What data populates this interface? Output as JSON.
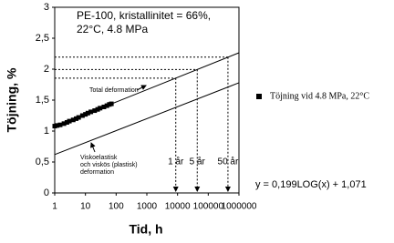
{
  "chart_data": {
    "type": "scatter",
    "xscale": "log",
    "xlabel": "Tid, h",
    "ylabel": "Töjning, %",
    "xlim": [
      1,
      1000000
    ],
    "ylim": [
      0,
      3
    ],
    "xticks": [
      1,
      10,
      100,
      1000,
      10000,
      100000,
      1000000
    ],
    "yticks": [
      0,
      {
        "value": 0.5,
        "label": "0,5"
      },
      1,
      {
        "value": 1.5,
        "label": "1,5"
      },
      2,
      {
        "value": 2.5,
        "label": "2,5"
      },
      3
    ],
    "note": [
      "PE-100, kristallinitet = 66%,",
      "22°C, 4.8 MPa"
    ],
    "series": [
      {
        "name": "Töjning vid 4.8 MPa, 22°C",
        "color": "#000000",
        "x": [
          1,
          1.2,
          1.5,
          2,
          2.5,
          3,
          4,
          5,
          6,
          8,
          10,
          12,
          15,
          20,
          25,
          30,
          40,
          50,
          60,
          70
        ],
        "values": [
          1.08,
          1.09,
          1.1,
          1.12,
          1.14,
          1.16,
          1.18,
          1.2,
          1.22,
          1.25,
          1.27,
          1.29,
          1.31,
          1.33,
          1.35,
          1.37,
          1.39,
          1.41,
          1.43,
          1.44
        ]
      }
    ],
    "lines": [
      {
        "label": [
          "Total deformation"
        ],
        "x": [
          1,
          1000000
        ],
        "values": [
          1.071,
          2.265
        ],
        "color": "#000000"
      },
      {
        "label": [
          "Viskoelastisk",
          "och viskös (plastisk)",
          "deformation"
        ],
        "x": [
          1,
          1000000
        ],
        "values": [
          0.62,
          1.78
        ],
        "color": "#000000"
      }
    ],
    "markers": [
      {
        "label": "1 år",
        "x": 8760,
        "y": 1.855
      },
      {
        "label": "5 år",
        "x": 43800,
        "y": 1.995
      },
      {
        "label": "50 år",
        "x": 438000,
        "y": 2.194
      }
    ],
    "equation": "y = 0,199LOG(x) + 1,071"
  }
}
